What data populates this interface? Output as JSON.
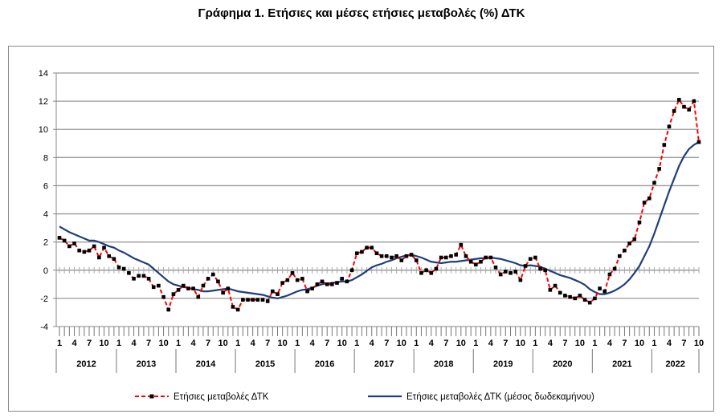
{
  "chart_data": {
    "type": "line",
    "title": "Γράφημα 1. Ετήσιες και μέσες ετήσιες μεταβολές (%) ΔΤΚ",
    "xlabel": "",
    "ylabel": "",
    "ylim": [
      -4,
      14
    ],
    "yticks": [
      "-4",
      "-2",
      "0",
      "2",
      "4",
      "6",
      "8",
      "10",
      "12",
      "14"
    ],
    "grid": true,
    "legend_position": "bottom",
    "years": [
      "2012",
      "2013",
      "2014",
      "2015",
      "2016",
      "2017",
      "2018",
      "2019",
      "2020",
      "2021",
      "2022"
    ],
    "month_labels": [
      "1",
      "4",
      "7",
      "10"
    ],
    "x_start": "2012-01",
    "x_end": "2022-10",
    "series": [
      {
        "name": "Ετήσιες μεταβολές ΔΤΚ",
        "color": "#ff0000",
        "marker_color": "#000000",
        "values": [
          2.3,
          2.1,
          1.7,
          1.9,
          1.4,
          1.3,
          1.4,
          1.7,
          0.9,
          1.6,
          1.0,
          0.8,
          0.2,
          0.1,
          -0.2,
          -0.6,
          -0.4,
          -0.4,
          -0.6,
          -1.2,
          -1.1,
          -1.9,
          -2.8,
          -1.7,
          -1.4,
          -1.1,
          -1.3,
          -1.3,
          -1.9,
          -1.1,
          -0.6,
          -0.3,
          -0.8,
          -1.6,
          -1.3,
          -2.6,
          -2.8,
          -2.1,
          -2.1,
          -2.1,
          -2.1,
          -2.1,
          -2.2,
          -1.5,
          -1.7,
          -0.9,
          -0.7,
          -0.2,
          -0.7,
          -0.6,
          -1.5,
          -1.3,
          -1.0,
          -0.8,
          -1.0,
          -1.0,
          -0.9,
          -0.6,
          -0.8,
          0.0,
          1.2,
          1.3,
          1.6,
          1.6,
          1.2,
          1.0,
          1.0,
          0.9,
          1.0,
          0.7,
          1.0,
          1.1,
          0.7,
          -0.2,
          0.0,
          -0.2,
          0.1,
          0.9,
          0.9,
          1.0,
          1.1,
          1.8,
          1.0,
          0.6,
          0.4,
          0.6,
          0.9,
          0.9,
          0.2,
          -0.3,
          -0.1,
          -0.2,
          -0.1,
          -0.7,
          0.3,
          0.8,
          0.9,
          0.1,
          0.0,
          -1.4,
          -1.1,
          -1.6,
          -1.8,
          -1.9,
          -2.0,
          -1.8,
          -2.1,
          -2.3,
          -2.0,
          -1.3,
          -1.5,
          -0.3,
          0.1,
          1.0,
          1.4,
          1.9,
          2.2,
          3.4,
          4.8,
          5.1,
          6.2,
          7.2,
          8.9,
          10.2,
          11.3,
          12.1,
          11.6,
          11.4,
          12.0,
          9.1
        ]
      },
      {
        "name": "Ετήσιες μεταβολές ΔΤΚ (μέσος δωδεκαμήνου)",
        "color": "#1f3f7a",
        "values": [
          3.1,
          2.9,
          2.7,
          2.55,
          2.4,
          2.25,
          2.1,
          2.1,
          2.0,
          1.85,
          1.7,
          1.6,
          1.4,
          1.25,
          1.05,
          0.85,
          0.7,
          0.55,
          0.4,
          0.1,
          -0.2,
          -0.5,
          -0.8,
          -1.0,
          -1.1,
          -1.2,
          -1.25,
          -1.35,
          -1.4,
          -1.5,
          -1.5,
          -1.45,
          -1.4,
          -1.35,
          -1.3,
          -1.4,
          -1.5,
          -1.55,
          -1.6,
          -1.65,
          -1.7,
          -1.75,
          -1.85,
          -1.95,
          -2.0,
          -1.9,
          -1.8,
          -1.65,
          -1.5,
          -1.4,
          -1.35,
          -1.25,
          -1.1,
          -1.0,
          -0.95,
          -0.9,
          -0.85,
          -0.8,
          -0.8,
          -0.7,
          -0.5,
          -0.3,
          -0.05,
          0.2,
          0.35,
          0.45,
          0.6,
          0.7,
          0.85,
          0.95,
          1.05,
          1.1,
          1.0,
          0.9,
          0.75,
          0.6,
          0.55,
          0.5,
          0.55,
          0.6,
          0.6,
          0.65,
          0.7,
          0.75,
          0.8,
          0.85,
          0.85,
          0.9,
          0.85,
          0.8,
          0.7,
          0.6,
          0.5,
          0.35,
          0.3,
          0.35,
          0.3,
          0.25,
          0.1,
          -0.05,
          -0.2,
          -0.35,
          -0.45,
          -0.55,
          -0.7,
          -0.85,
          -1.05,
          -1.35,
          -1.55,
          -1.7,
          -1.7,
          -1.6,
          -1.45,
          -1.25,
          -1.0,
          -0.65,
          -0.2,
          0.3,
          1.0,
          1.7,
          2.6,
          3.6,
          4.6,
          5.6,
          6.5,
          7.4,
          8.1,
          8.6,
          8.9,
          9.1
        ]
      }
    ]
  }
}
